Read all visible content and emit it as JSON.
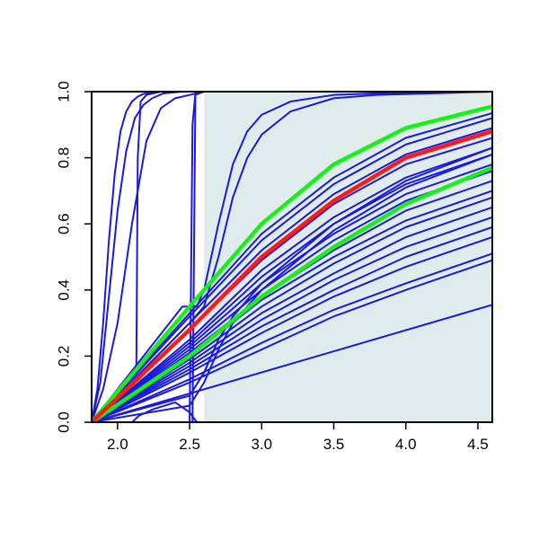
{
  "chart_data": {
    "type": "line",
    "title": "",
    "xlabel": "",
    "ylabel": "",
    "xlim": [
      1.82,
      4.6
    ],
    "ylim": [
      0,
      1.0
    ],
    "x_ticks": [
      2.0,
      2.5,
      3.0,
      3.5,
      4.0,
      4.5
    ],
    "x_tick_labels": [
      "2.0",
      "2.5",
      "3.0",
      "3.5",
      "4.0",
      "4.5"
    ],
    "y_ticks": [
      0.0,
      0.2,
      0.4,
      0.6,
      0.8,
      1.0
    ],
    "y_tick_labels": [
      "0.0",
      "0.2",
      "0.4",
      "0.6",
      "0.8",
      "1.0"
    ],
    "shaded_region": {
      "x_from": 2.6,
      "x_to": 4.6,
      "color": "#e0eceb"
    },
    "colors": {
      "curves": "#1a1adb",
      "highlight": "#ff1a1a",
      "bounds": "#19f019",
      "frame": "#000000"
    },
    "series": [
      {
        "role": "curve",
        "x": [
          1.82,
          1.86,
          1.9,
          1.94,
          1.98,
          2.02,
          2.06,
          2.1,
          2.14,
          2.18,
          2.22,
          2.3
        ],
        "y": [
          0.0,
          0.1,
          0.3,
          0.55,
          0.75,
          0.88,
          0.94,
          0.97,
          0.985,
          0.993,
          0.997,
          1.0
        ]
      },
      {
        "role": "curve",
        "x": [
          1.82,
          1.88,
          1.94,
          2.0,
          2.06,
          2.12,
          2.18,
          2.24,
          2.32,
          2.45
        ],
        "y": [
          0.0,
          0.12,
          0.38,
          0.64,
          0.82,
          0.92,
          0.96,
          0.98,
          0.995,
          1.0
        ]
      },
      {
        "role": "curve",
        "x": [
          1.82,
          1.9,
          2.0,
          2.1,
          2.2,
          2.3,
          2.4,
          2.5,
          2.6
        ],
        "y": [
          0.0,
          0.1,
          0.3,
          0.6,
          0.85,
          0.95,
          0.98,
          0.99,
          1.0
        ]
      },
      {
        "role": "curve",
        "x": [
          1.82,
          2.13,
          2.14,
          2.16,
          2.2,
          2.3,
          2.5
        ],
        "y": [
          0.0,
          0.15,
          0.8,
          0.97,
          0.99,
          1.0,
          1.0
        ]
      },
      {
        "role": "curve",
        "x": [
          1.82,
          2.5,
          2.52,
          2.54,
          2.6,
          4.6
        ],
        "y": [
          0.0,
          0.0,
          0.9,
          0.995,
          1.0,
          1.0
        ]
      },
      {
        "role": "curve",
        "x": [
          1.82,
          2.4,
          2.5,
          2.52,
          2.54,
          2.6,
          4.6
        ],
        "y": [
          0.0,
          0.0,
          0.0,
          0.0,
          0.99,
          1.0,
          1.0
        ]
      },
      {
        "role": "curve",
        "x": [
          1.82,
          2.45,
          2.55,
          2.6,
          2.7,
          2.8,
          2.9,
          3.0,
          3.2,
          3.5,
          3.8,
          4.2,
          4.6
        ],
        "y": [
          0.0,
          0.35,
          0.35,
          0.4,
          0.6,
          0.78,
          0.88,
          0.93,
          0.97,
          0.99,
          0.995,
          0.998,
          1.0
        ]
      },
      {
        "role": "curve",
        "x": [
          1.82,
          2.5,
          2.6,
          2.7,
          2.8,
          2.9,
          3.0,
          3.2,
          3.5,
          3.8,
          4.2,
          4.6
        ],
        "y": [
          0.0,
          0.3,
          0.35,
          0.5,
          0.68,
          0.8,
          0.87,
          0.94,
          0.98,
          0.99,
          0.995,
          1.0
        ]
      },
      {
        "role": "curve",
        "x": [
          1.82,
          2.1,
          2.15,
          2.25,
          2.4,
          2.5,
          2.55
        ],
        "y": [
          0.0,
          0.0,
          0.02,
          0.04,
          0.06,
          0.03,
          0.0
        ]
      },
      {
        "role": "curve",
        "x": [
          1.82,
          4.6
        ],
        "y": [
          0.0,
          0.355
        ]
      },
      {
        "role": "curve",
        "x": [
          1.82,
          2.5,
          3.0,
          3.5,
          4.0,
          4.6
        ],
        "y": [
          0.0,
          0.12,
          0.22,
          0.32,
          0.4,
          0.49
        ]
      },
      {
        "role": "curve",
        "x": [
          1.82,
          2.5,
          3.0,
          3.5,
          4.0,
          4.6
        ],
        "y": [
          0.0,
          0.13,
          0.24,
          0.34,
          0.42,
          0.51
        ]
      },
      {
        "role": "curve",
        "x": [
          1.82,
          2.5,
          3.0,
          3.5,
          4.0,
          4.6
        ],
        "y": [
          0.0,
          0.15,
          0.27,
          0.38,
          0.47,
          0.56
        ]
      },
      {
        "role": "curve",
        "x": [
          1.82,
          2.5,
          3.0,
          3.5,
          4.0,
          4.6
        ],
        "y": [
          0.0,
          0.16,
          0.29,
          0.4,
          0.5,
          0.59
        ]
      },
      {
        "role": "curve",
        "x": [
          1.82,
          2.5,
          3.0,
          3.5,
          4.0,
          4.6
        ],
        "y": [
          0.0,
          0.17,
          0.31,
          0.43,
          0.53,
          0.62
        ]
      },
      {
        "role": "curve",
        "x": [
          1.82,
          2.5,
          3.0,
          3.5,
          4.0,
          4.6
        ],
        "y": [
          0.0,
          0.18,
          0.33,
          0.45,
          0.56,
          0.65
        ]
      },
      {
        "role": "curve",
        "x": [
          1.82,
          2.5,
          3.0,
          3.5,
          4.0,
          4.6
        ],
        "y": [
          0.0,
          0.19,
          0.35,
          0.48,
          0.59,
          0.68
        ]
      },
      {
        "role": "curve",
        "x": [
          1.82,
          2.5,
          3.0,
          3.5,
          4.0,
          4.6
        ],
        "y": [
          0.0,
          0.2,
          0.37,
          0.5,
          0.61,
          0.7
        ]
      },
      {
        "role": "curve",
        "x": [
          1.82,
          2.5,
          3.0,
          3.5,
          4.0,
          4.6
        ],
        "y": [
          0.0,
          0.21,
          0.38,
          0.52,
          0.64,
          0.73
        ]
      },
      {
        "role": "curve",
        "x": [
          1.82,
          2.5,
          3.0,
          3.5,
          4.0,
          4.6
        ],
        "y": [
          0.0,
          0.22,
          0.4,
          0.55,
          0.67,
          0.76
        ]
      },
      {
        "role": "curve",
        "x": [
          1.82,
          2.5,
          3.0,
          3.5,
          4.0,
          4.6
        ],
        "y": [
          0.0,
          0.23,
          0.42,
          0.57,
          0.69,
          0.78
        ]
      },
      {
        "role": "curve",
        "x": [
          1.82,
          2.5,
          3.0,
          3.5,
          4.0,
          4.6
        ],
        "y": [
          0.0,
          0.24,
          0.44,
          0.6,
          0.72,
          0.81
        ]
      },
      {
        "role": "curve",
        "x": [
          1.82,
          2.5,
          3.0,
          3.5,
          4.0,
          4.6
        ],
        "y": [
          0.0,
          0.25,
          0.46,
          0.62,
          0.74,
          0.83
        ]
      },
      {
        "role": "curve",
        "x": [
          1.82,
          2.5,
          3.0,
          3.5,
          4.0,
          4.6
        ],
        "y": [
          0.0,
          0.28,
          0.49,
          0.66,
          0.78,
          0.86
        ]
      },
      {
        "role": "curve",
        "x": [
          1.82,
          2.5,
          3.0,
          3.5,
          4.0,
          4.6
        ],
        "y": [
          0.0,
          0.3,
          0.52,
          0.69,
          0.81,
          0.89
        ]
      },
      {
        "role": "curve",
        "x": [
          1.82,
          2.5,
          3.0,
          3.5,
          4.0,
          4.6
        ],
        "y": [
          0.0,
          0.32,
          0.55,
          0.72,
          0.84,
          0.92
        ]
      },
      {
        "role": "curve",
        "x": [
          1.82,
          2.5,
          3.0,
          3.5,
          4.0,
          4.6
        ],
        "y": [
          0.0,
          0.33,
          0.57,
          0.74,
          0.86,
          0.935
        ]
      },
      {
        "role": "curve",
        "x": [
          1.82,
          2.5,
          2.6,
          2.7,
          2.8,
          3.0,
          3.5,
          4.0,
          4.6
        ],
        "y": [
          0.0,
          0.08,
          0.15,
          0.25,
          0.32,
          0.42,
          0.6,
          0.73,
          0.83
        ]
      },
      {
        "role": "curve",
        "x": [
          1.82,
          2.5,
          2.6,
          2.7,
          2.8,
          3.0,
          3.5,
          4.0,
          4.6
        ],
        "y": [
          0.0,
          0.05,
          0.12,
          0.22,
          0.3,
          0.4,
          0.58,
          0.71,
          0.81
        ]
      },
      {
        "role": "bound",
        "x": [
          1.82,
          2.5,
          3.0,
          3.5,
          4.0,
          4.6
        ],
        "y": [
          0.0,
          0.35,
          0.6,
          0.78,
          0.89,
          0.955
        ]
      },
      {
        "role": "highlight",
        "x": [
          1.82,
          2.5,
          3.0,
          3.5,
          4.0,
          4.6
        ],
        "y": [
          0.0,
          0.28,
          0.5,
          0.67,
          0.8,
          0.88
        ]
      },
      {
        "role": "bound",
        "x": [
          1.82,
          2.5,
          3.0,
          3.5,
          4.0,
          4.6
        ],
        "y": [
          0.0,
          0.2,
          0.38,
          0.53,
          0.66,
          0.77
        ]
      }
    ]
  }
}
